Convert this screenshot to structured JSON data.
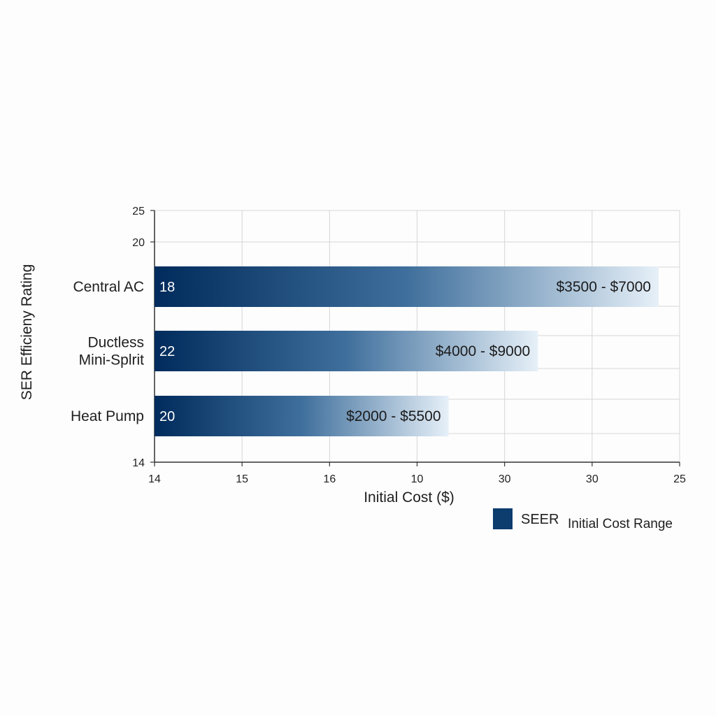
{
  "chart_data": {
    "type": "bar",
    "orientation": "horizontal",
    "ylabel": "SER Efficieny Rating",
    "xlabel": "Initial Cost ($)",
    "categories": [
      "Central AC",
      "Ductless\nMini-Splrit",
      "Heat Pump"
    ],
    "series": [
      {
        "name": "SEER",
        "values": [
          18,
          22,
          20
        ],
        "bar_end_fraction": [
          0.96,
          0.73,
          0.56
        ],
        "range_labels": [
          "$3500 - $7000",
          "$4000 - $9000",
          "$2000 - $5500"
        ]
      }
    ],
    "x_tick_labels": [
      "14",
      "15",
      "16",
      "10",
      "30",
      "30",
      "25"
    ],
    "y_tick_labels": [
      "25",
      "20",
      "14"
    ],
    "legend": {
      "entries": [
        "SEER",
        "Initial Cost Range"
      ],
      "placement": "bottom-right"
    },
    "grid": true,
    "colors": {
      "bar_dark": "#002b5c",
      "bar_mid": "#4d7ea8",
      "bar_light": "#e6f0f8",
      "grid": "#d6d6d6",
      "axis": "#333333",
      "legend_swatch": "#0d3c6e"
    }
  }
}
